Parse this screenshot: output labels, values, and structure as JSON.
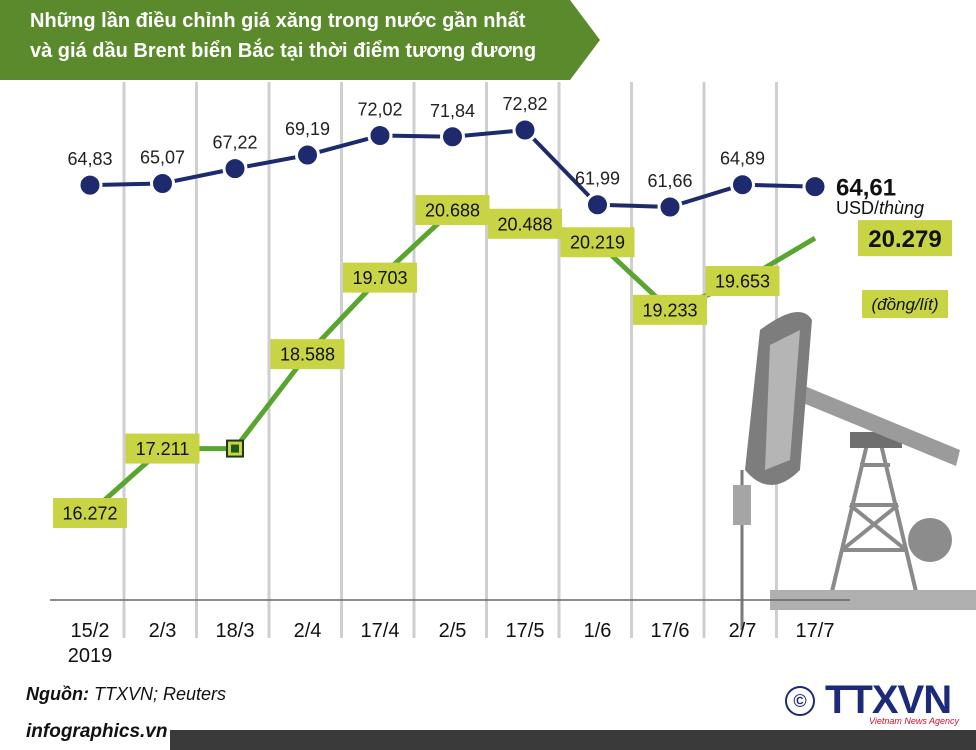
{
  "title": {
    "line1": "Những lần điều chỉnh giá xăng trong nước gần nhất",
    "line2": "và giá dầu Brent biển Bắc tại thời điểm tương đương"
  },
  "colors": {
    "banner": "#5a8a2c",
    "brent_line": "#1d2a6e",
    "petrol_line": "#5aa52f",
    "label_box": "#c8d444",
    "grid": "#cfcfcf"
  },
  "chart_data": {
    "type": "line",
    "categories": [
      "15/2",
      "2/3",
      "18/3",
      "2/4",
      "17/4",
      "2/5",
      "17/5",
      "1/6",
      "17/6",
      "2/7",
      "17/7"
    ],
    "category_sublabel": "2019",
    "series": [
      {
        "values": [
          64.83,
          65.07,
          67.22,
          69.19,
          72.02,
          71.84,
          72.82,
          61.99,
          61.66,
          64.89,
          64.61
        ],
        "labels": [
          "64,83",
          "65,07",
          "67,22",
          "69,19",
          "72,02",
          "71,84",
          "72,82",
          "61,99",
          "61,66",
          "64,89",
          "64,61"
        ],
        "unit": "USD/thùng"
      },
      {
        "values": [
          16272,
          17211,
          17211,
          18588,
          19703,
          20688,
          20488,
          20219,
          19233,
          19653,
          20279
        ],
        "labels": [
          "16.272",
          "17.211",
          "",
          "18.588",
          "19.703",
          "20.688",
          "20.488",
          "20.219",
          "19.233",
          "19.653",
          "20.279"
        ],
        "unit": "(đồng/lít)"
      }
    ]
  },
  "footer": {
    "source_label": "Nguồn:",
    "source_value": " TTXVN; Reuters",
    "site": "infographics.vn"
  },
  "logo": {
    "copyright": "©",
    "brand": "TTXVN",
    "tagline": "Vietnam News Agency"
  }
}
